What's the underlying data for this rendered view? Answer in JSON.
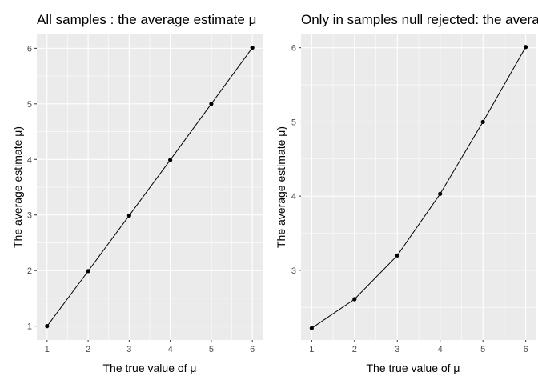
{
  "chart_data": [
    {
      "type": "line",
      "title": "All samples : the average estimate μ",
      "xlabel": "The true value of μ",
      "ylabel": "The average estimate μ)",
      "x": [
        1,
        2,
        3,
        4,
        5,
        6
      ],
      "series": [
        {
          "values": [
            1.0,
            1.99,
            2.99,
            3.99,
            5.0,
            6.01
          ]
        }
      ],
      "xlim": [
        0.75,
        6.25
      ],
      "ylim": [
        0.75,
        6.25
      ],
      "xticks": [
        1,
        2,
        3,
        4,
        5,
        6
      ],
      "yticks": [
        1,
        2,
        3,
        4,
        5,
        6
      ],
      "grid": true,
      "point_color": "#000000",
      "line_color": "#000000",
      "panel_color": "#ebebeb"
    },
    {
      "type": "line",
      "title": "Only in samples null rejected: the average estimate μ",
      "xlabel": "The true value of μ",
      "ylabel": "The average estimate μ)",
      "x": [
        1,
        2,
        3,
        4,
        5,
        6
      ],
      "series": [
        {
          "values": [
            2.22,
            2.61,
            3.2,
            4.03,
            5.0,
            6.01
          ]
        }
      ],
      "xlim": [
        0.75,
        6.25
      ],
      "ylim": [
        2.06,
        6.18
      ],
      "xticks": [
        1,
        2,
        3,
        4,
        5,
        6
      ],
      "yticks": [
        3,
        4,
        5,
        6
      ],
      "grid": true,
      "point_color": "#000000",
      "line_color": "#000000",
      "panel_color": "#ebebeb"
    }
  ]
}
